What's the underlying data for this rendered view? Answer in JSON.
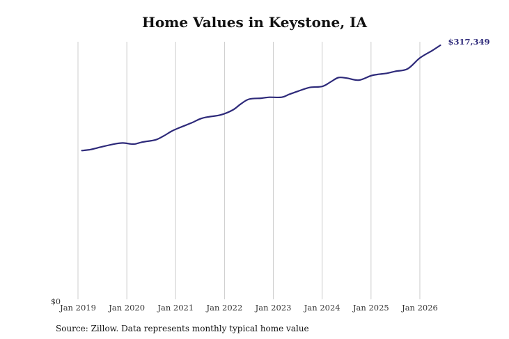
{
  "chart_data": {
    "type": "line",
    "title": "Home Values in Keystone, IA",
    "xlabel": "",
    "ylabel": "",
    "y_zero_label": "$0",
    "source": "Source: Zillow. Data represents monthly typical home value",
    "line_color": "#2e2a7a",
    "grid": "vertical",
    "ylim": [
      0,
      317349
    ],
    "x_ticks": [
      {
        "label": "Jan 2019",
        "year": 2019
      },
      {
        "label": "Jan 2020",
        "year": 2020
      },
      {
        "label": "Jan 2021",
        "year": 2021
      },
      {
        "label": "Jan 2022",
        "year": 2022
      },
      {
        "label": "Jan 2023",
        "year": 2023
      },
      {
        "label": "Jan 2024",
        "year": 2024
      },
      {
        "label": "Jan 2025",
        "year": 2025
      },
      {
        "label": "Jan 2026",
        "year": 2026
      }
    ],
    "end_label": "$317,349",
    "series": [
      {
        "points": [
          {
            "year": 2019.08,
            "value": 185800
          },
          {
            "year": 2019.25,
            "value": 187000
          },
          {
            "year": 2019.5,
            "value": 190700
          },
          {
            "year": 2019.75,
            "value": 194100
          },
          {
            "year": 2019.92,
            "value": 195300
          },
          {
            "year": 2020.08,
            "value": 194100
          },
          {
            "year": 2020.17,
            "value": 194100
          },
          {
            "year": 2020.33,
            "value": 196600
          },
          {
            "year": 2020.58,
            "value": 199000
          },
          {
            "year": 2020.75,
            "value": 203900
          },
          {
            "year": 2020.92,
            "value": 210100
          },
          {
            "year": 2021.08,
            "value": 214400
          },
          {
            "year": 2021.33,
            "value": 220500
          },
          {
            "year": 2021.5,
            "value": 225400
          },
          {
            "year": 2021.67,
            "value": 227900
          },
          {
            "year": 2021.92,
            "value": 230300
          },
          {
            "year": 2022.17,
            "value": 236500
          },
          {
            "year": 2022.33,
            "value": 243800
          },
          {
            "year": 2022.5,
            "value": 250000
          },
          {
            "year": 2022.75,
            "value": 251200
          },
          {
            "year": 2022.92,
            "value": 252400
          },
          {
            "year": 2023.17,
            "value": 252400
          },
          {
            "year": 2023.33,
            "value": 256100
          },
          {
            "year": 2023.5,
            "value": 259800
          },
          {
            "year": 2023.75,
            "value": 264700
          },
          {
            "year": 2024.0,
            "value": 265900
          },
          {
            "year": 2024.17,
            "value": 271400
          },
          {
            "year": 2024.33,
            "value": 276900
          },
          {
            "year": 2024.5,
            "value": 276300
          },
          {
            "year": 2024.75,
            "value": 273800
          },
          {
            "year": 2025.0,
            "value": 279300
          },
          {
            "year": 2025.17,
            "value": 281200
          },
          {
            "year": 2025.33,
            "value": 282400
          },
          {
            "year": 2025.5,
            "value": 284800
          },
          {
            "year": 2025.75,
            "value": 287900
          },
          {
            "year": 2026.0,
            "value": 301400
          },
          {
            "year": 2026.25,
            "value": 310600
          },
          {
            "year": 2026.42,
            "value": 317349
          }
        ]
      }
    ]
  }
}
